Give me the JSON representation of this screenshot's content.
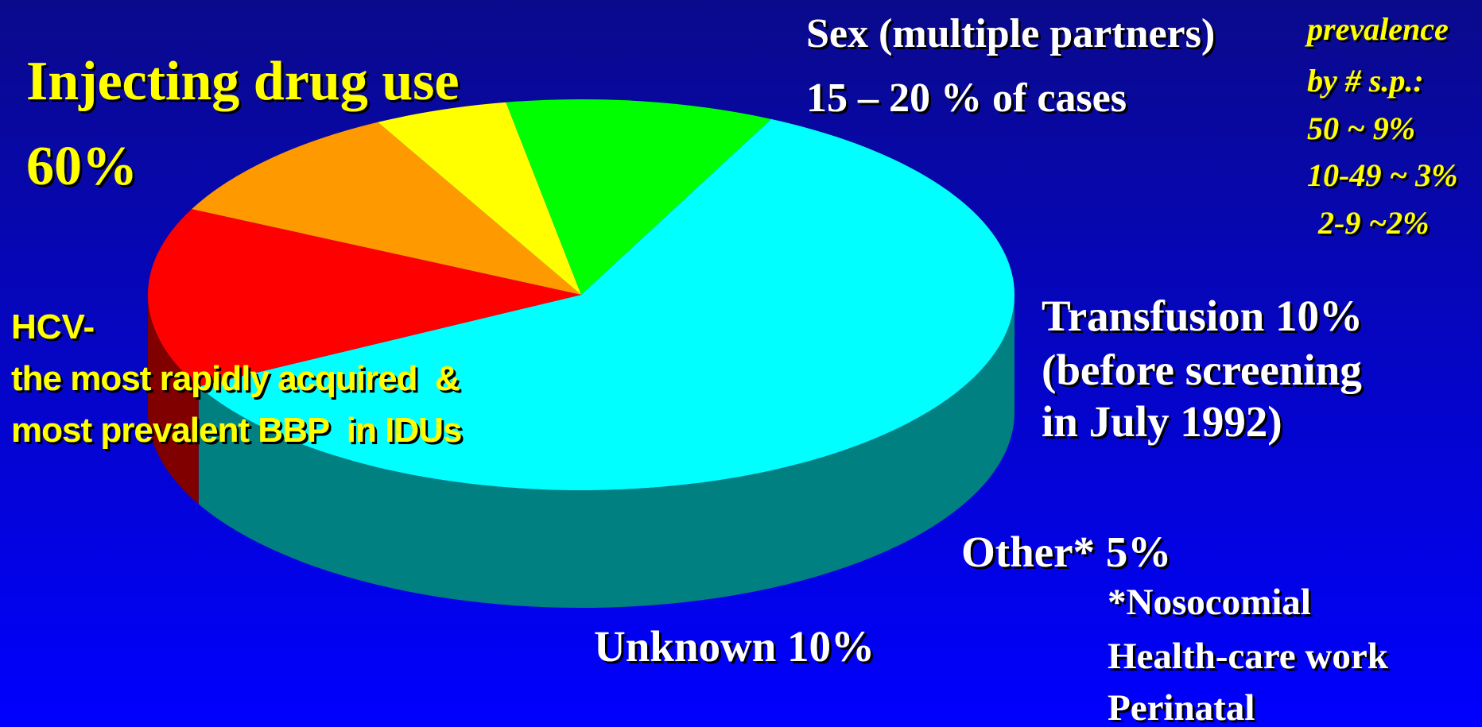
{
  "chart_data": {
    "type": "pie3d",
    "categories": [
      "Injecting drug use",
      "Sex (multiple partners)",
      "Transfusion",
      "Other*",
      "Unknown"
    ],
    "values": [
      60,
      15,
      10,
      5,
      10
    ],
    "value_labels": [
      "60%",
      "15 – 20 % of cases",
      "10%",
      "5%",
      "10%"
    ],
    "colors": [
      "#00ffff",
      "#ff0000",
      "#ff9900",
      "#ffff00",
      "#00ff00"
    ],
    "annotations": {
      "transfusion_note": [
        "(before screening",
        "in July 1992)"
      ],
      "other_note": [
        "*Nosocomial",
        "Health-care work",
        "Perinatal"
      ],
      "prevalence": [
        "prevalence",
        "by # s.p.:",
        "50 ~ 9%",
        "10-49 ~ 3%",
        "2-9 ~2%"
      ],
      "hcv": [
        "HCV-",
        "the most rapidly acquired  &",
        "most prevalent BBP  in IDUs"
      ]
    }
  }
}
